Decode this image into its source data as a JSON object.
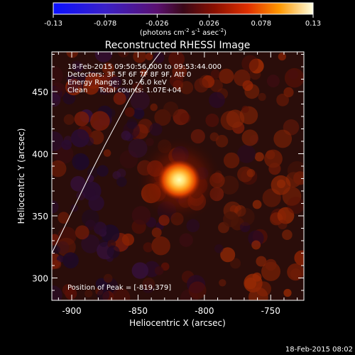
{
  "chart_data": {
    "type": "heatmap",
    "title": "Reconstructed RHESSI Image",
    "xlabel": "Heliocentric X (arcsec)",
    "ylabel": "Heliocentric Y (arcsec)",
    "xlim": [
      -915,
      -725
    ],
    "ylim": [
      282,
      482
    ],
    "x_ticks": [
      -900,
      -850,
      -800,
      -750
    ],
    "y_ticks": [
      300,
      350,
      400,
      450
    ],
    "colorbar": {
      "min": -0.13,
      "max": 0.13,
      "ticks": [
        "-0.13",
        "-0.078",
        "-0.026",
        "0.026",
        "0.078",
        "0.13"
      ],
      "label": "(photons cm",
      "label_exp1": "-2",
      "label_mid": " s",
      "label_exp2": "-1",
      "label_tail": " asec",
      "label_exp3": "-2",
      "label_end": ")"
    },
    "annotations": [
      "18-Feb-2015 09:50:56.000 to 09:53:44.000",
      "Detectors: 3F 5F 6F 7F 8F 9F, Att 0",
      "Energy Range: 3.0 - 6.0 keV",
      "Clean     Total counts: 1.07E+04"
    ],
    "peak_label": "Position of Peak = [-819,379]",
    "peak": {
      "x": -819,
      "y": 379,
      "value": 0.13
    },
    "limb": [
      [
        -915,
        320
      ],
      [
        -905,
        342
      ],
      [
        -895,
        364
      ],
      [
        -885,
        386
      ],
      [
        -875,
        407
      ],
      [
        -865,
        427
      ],
      [
        -857,
        443
      ],
      [
        -848,
        459
      ],
      [
        -840,
        472
      ],
      [
        -833,
        482
      ]
    ],
    "grid": false
  },
  "footer": {
    "timestamp": "18-Feb-2015 08:02"
  }
}
